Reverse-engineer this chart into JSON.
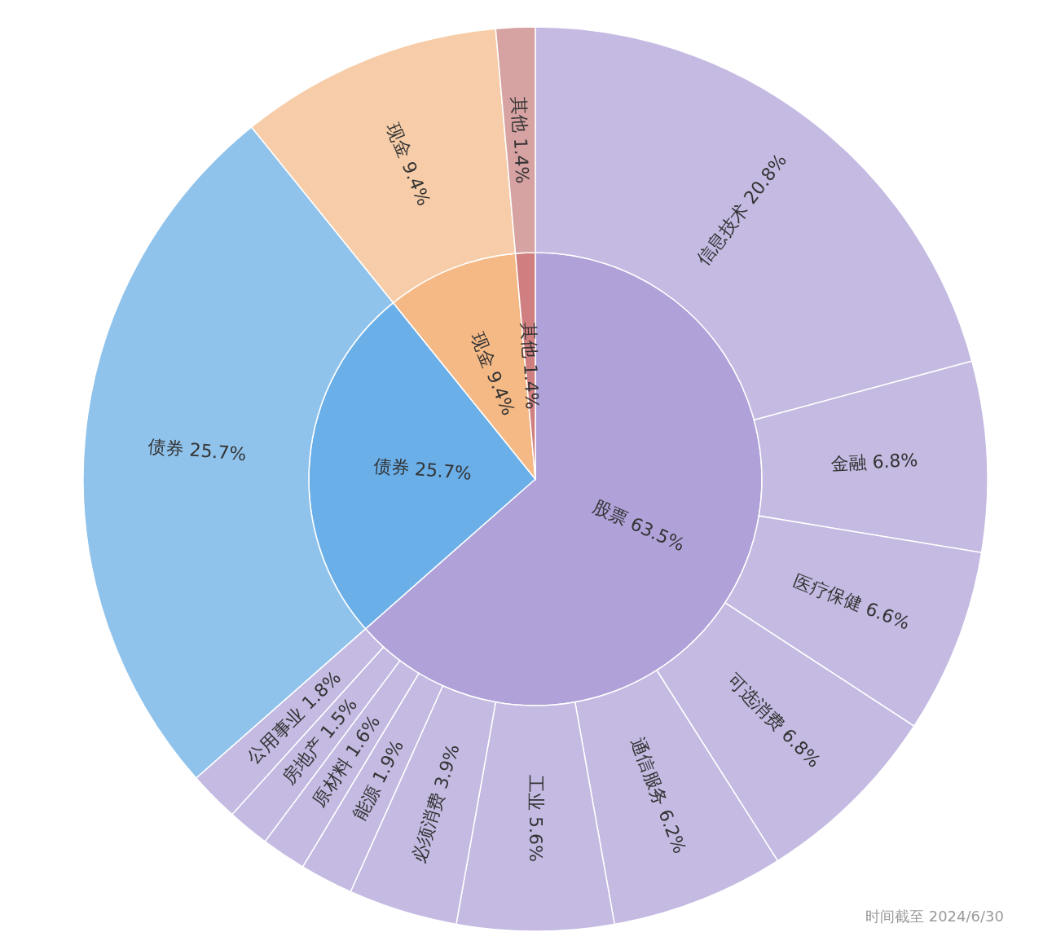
{
  "chart_data": [
    {
      "type": "pie",
      "data_labels": true,
      "categories": [
        "股票",
        "债券",
        "现金",
        "其他"
      ],
      "values": [
        63.5,
        25.7,
        9.4,
        1.4
      ],
      "value_labels": [
        "63.5%",
        "25.7%",
        "9.4%",
        "1.4%"
      ],
      "colors": [
        "#b0a2d9",
        "#6aafe8",
        "#f5b986",
        "#cf7f80"
      ]
    },
    {
      "type": "donut",
      "data_labels": true,
      "annotations": [
        "时间截至 2024/6/30"
      ],
      "categories": [
        "信息技术",
        "金融",
        "医疗保健",
        "可选消费",
        "通信服务",
        "工业",
        "必须消费",
        "能源",
        "原材料",
        "房地产",
        "公用事业",
        "债券",
        "现金",
        "其他"
      ],
      "values": [
        20.8,
        6.8,
        6.6,
        6.8,
        6.2,
        5.6,
        3.9,
        1.9,
        1.6,
        1.5,
        1.8,
        25.7,
        9.4,
        1.4
      ],
      "value_labels": [
        "20.8%",
        "6.8%",
        "6.6%",
        "6.8%",
        "6.2%",
        "5.6%",
        "3.9%",
        "1.9%",
        "1.6%",
        "1.5%",
        "1.8%",
        "25.7%",
        "9.4%",
        "1.4%"
      ],
      "colors": [
        "#c4bae2",
        "#c4bae2",
        "#c4bae2",
        "#c4bae2",
        "#c4bae2",
        "#c4bae2",
        "#c4bae2",
        "#c4bae2",
        "#c4bae2",
        "#c4bae2",
        "#c4bae2",
        "#90c3ec",
        "#f6cda8",
        "#d6a2a2"
      ]
    }
  ]
}
